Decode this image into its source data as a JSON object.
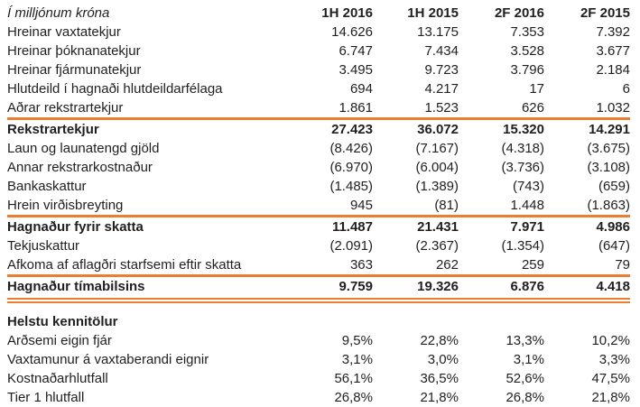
{
  "accent_color": "#ED7D31",
  "text_color": "#1f1f1f",
  "table": {
    "unit_label": "Í milljónum króna",
    "columns": [
      "1H 2016",
      "1H 2015",
      "2F 2016",
      "2F 2015"
    ],
    "rows": [
      {
        "label": "Hreinar vaxtatekjur",
        "values": [
          "14.626",
          "13.175",
          "7.353",
          "7.392"
        ]
      },
      {
        "label": "Hreinar þóknanatekjur",
        "values": [
          "6.747",
          "7.434",
          "3.528",
          "3.677"
        ]
      },
      {
        "label": "Hreinar fjármunatekjur",
        "values": [
          "3.495",
          "9.723",
          "3.796",
          "2.184"
        ]
      },
      {
        "label": "Hlutdeild í hagnaði hlutdeildarfélaga",
        "values": [
          "694",
          "4.217",
          "17",
          "6"
        ]
      },
      {
        "label": "Aðrar rekstrartekjur",
        "values": [
          "1.861",
          "1.523",
          "626",
          "1.032"
        ]
      },
      {
        "label": "Rekstrartekjur",
        "values": [
          "27.423",
          "36.072",
          "15.320",
          "14.291"
        ],
        "bold": true,
        "rule_above": true
      },
      {
        "label": "Laun og launatengd gjöld",
        "values": [
          "(8.426)",
          "(7.167)",
          "(4.318)",
          "(3.675)"
        ]
      },
      {
        "label": "Annar rekstrarkostnaður",
        "values": [
          "(6.970)",
          "(6.004)",
          "(3.736)",
          "(3.108)"
        ]
      },
      {
        "label": "Bankaskattur",
        "values": [
          "(1.485)",
          "(1.389)",
          "(743)",
          "(659)"
        ]
      },
      {
        "label": "Hrein virðisbreyting",
        "values": [
          "945",
          "(81)",
          "1.448",
          "(1.863)"
        ]
      },
      {
        "label": "Hagnaður fyrir skatta",
        "values": [
          "11.487",
          "21.431",
          "7.971",
          "4.986"
        ],
        "bold": true,
        "rule_above": true
      },
      {
        "label": "Tekjuskattur",
        "values": [
          "(2.091)",
          "(2.367)",
          "(1.354)",
          "(647)"
        ]
      },
      {
        "label": "Afkoma af aflagðri starfsemi eftir skatta",
        "values": [
          "363",
          "262",
          "259",
          "79"
        ]
      },
      {
        "label": "Hagnaður tímabilsins",
        "values": [
          "9.759",
          "19.326",
          "6.876",
          "4.418"
        ],
        "bold": true,
        "rule_above": true,
        "double_rule_below": true
      },
      {
        "label": "Helstu kennitölur",
        "values": [
          "",
          "",
          "",
          ""
        ],
        "bold": true,
        "spacer_above": true
      },
      {
        "label": "Arðsemi eigin fjár",
        "values": [
          "9,5%",
          "22,8%",
          "13,3%",
          "10,2%"
        ]
      },
      {
        "label": "Vaxtamunur á vaxtaberandi eignir",
        "values": [
          "3,1%",
          "3,0%",
          "3,1%",
          "3,3%"
        ]
      },
      {
        "label": "Kostnaðarhlutfall",
        "values": [
          "56,1%",
          "36,5%",
          "52,6%",
          "47,5%"
        ]
      },
      {
        "label": "Tier 1 hlutfall",
        "values": [
          "26,8%",
          "21,8%",
          "26,8%",
          "21,8%"
        ]
      }
    ]
  }
}
